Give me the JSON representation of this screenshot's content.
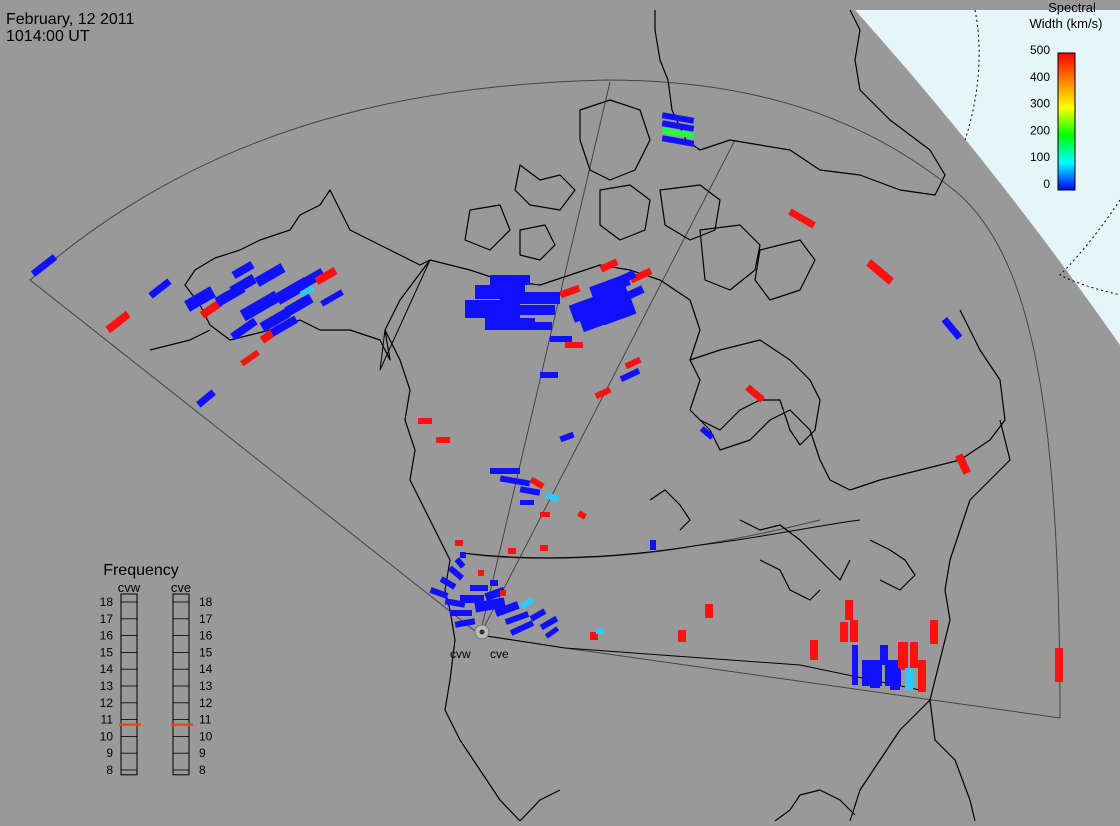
{
  "header": {
    "date": "February, 12 2011",
    "time": "1014:00 UT"
  },
  "colorbar": {
    "title_line1": "Spectral",
    "title_line2": "Width (km/s)",
    "ticks": [
      "500",
      "400",
      "300",
      "200",
      "100",
      "0"
    ],
    "range": [
      0,
      500
    ],
    "colors": [
      "#ff0000",
      "#ff8000",
      "#ffff00",
      "#00ff00",
      "#00ffff",
      "#0000ff"
    ]
  },
  "frequency_panel": {
    "title": "Frequency",
    "radars": [
      "cvw",
      "cve"
    ],
    "scale": [
      "18",
      "17",
      "16",
      "15",
      "14",
      "13",
      "12",
      "11",
      "10",
      "9",
      "8"
    ],
    "current_mhz": {
      "cvw": 10.7,
      "cve": 10.7
    },
    "marker_color": "#ff4000"
  },
  "radar_sites": {
    "names": [
      "cvw",
      "cve"
    ]
  },
  "map_colors": {
    "background": "#999999",
    "night_region": "#e6f4fb",
    "coast": "#000000"
  }
}
